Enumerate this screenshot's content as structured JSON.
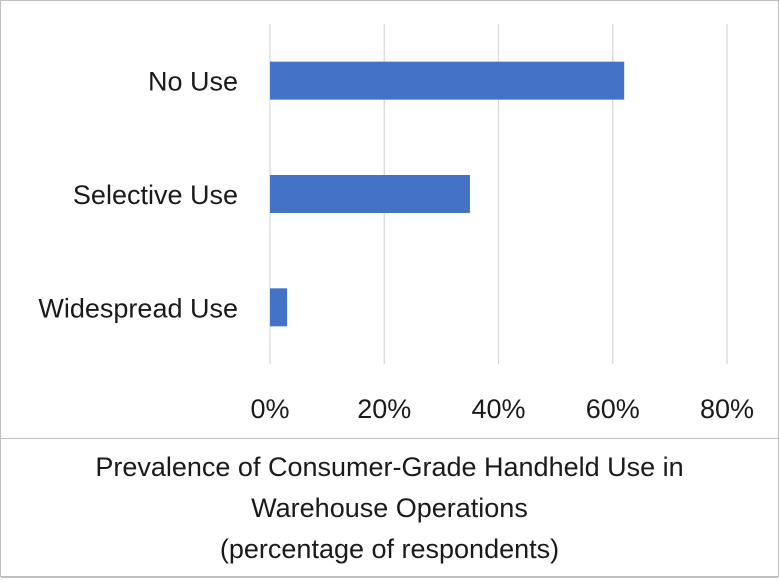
{
  "chart_data": {
    "type": "bar",
    "orientation": "horizontal",
    "categories": [
      "No Use",
      "Selective Use",
      "Widespread Use"
    ],
    "values": [
      62,
      35,
      3
    ],
    "value_unit": "%",
    "xlim": [
      0,
      80
    ],
    "xticks": [
      "0%",
      "20%",
      "40%",
      "60%",
      "80%"
    ],
    "grid": "vertical",
    "bar_color": "#4472c4",
    "grid_color": "#d9d9d9",
    "caption_lines": [
      "Prevalence of Consumer-Grade Handheld Use in",
      "Warehouse Operations",
      "(percentage of respondents)"
    ]
  }
}
